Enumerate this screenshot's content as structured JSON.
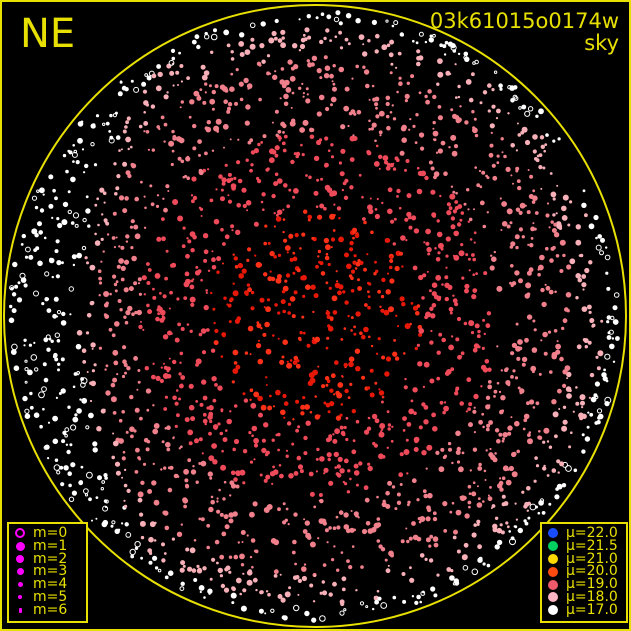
{
  "header": {
    "direction_label": "NE",
    "frame_id": "03k61015o0174w",
    "frame_type": "sky"
  },
  "colors": {
    "frame": "#e8e000",
    "magnitude_symbol": "#ff00ff"
  },
  "magnitude_legend": [
    {
      "label": "m=0",
      "symbol": "ring"
    },
    {
      "label": "m=1",
      "symbol": "dot"
    },
    {
      "label": "m=2",
      "symbol": "dot"
    },
    {
      "label": "m=3",
      "symbol": "dot"
    },
    {
      "label": "m=4",
      "symbol": "dot"
    },
    {
      "label": "m=5",
      "symbol": "dot"
    },
    {
      "label": "m=6",
      "symbol": "dot"
    }
  ],
  "brightness_legend": [
    {
      "label": "μ=22.0",
      "color": "#1a4cff"
    },
    {
      "label": "μ=21.5",
      "color": "#00d060"
    },
    {
      "label": "μ=21.0",
      "color": "#ffd800"
    },
    {
      "label": "μ=20.0",
      "color": "#ff4a10"
    },
    {
      "label": "μ=19.0",
      "color": "#ee5a6a"
    },
    {
      "label": "μ=18.0",
      "color": "#ffb4c4"
    },
    {
      "label": "μ=17.0",
      "color": "#ffffff"
    }
  ]
}
